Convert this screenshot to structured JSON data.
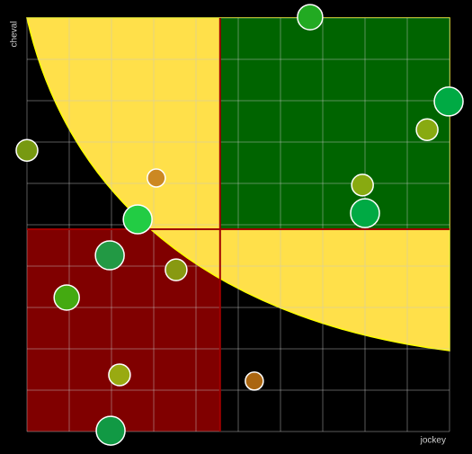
{
  "chart_data": {
    "type": "bubble",
    "x_label": "jockey",
    "y_label": "cheval",
    "xlim": [
      0,
      10
    ],
    "ylim": [
      0,
      10
    ],
    "xticks": [
      0,
      1,
      2,
      3,
      4,
      5,
      6,
      7,
      8,
      9,
      10
    ],
    "yticks": [
      0,
      1,
      2,
      3,
      4,
      5,
      6,
      7,
      8,
      9,
      10
    ],
    "grid": true,
    "thresholds": {
      "x": 4.57,
      "y": 4.89
    },
    "x": [
      6.7,
      9.98,
      9.47,
      0.0,
      3.06,
      7.94,
      8.0,
      2.62,
      1.96,
      3.53,
      0.94,
      2.19,
      5.38,
      1.98
    ],
    "y": [
      10.02,
      7.98,
      7.3,
      6.8,
      6.13,
      5.96,
      5.28,
      5.13,
      4.26,
      3.91,
      3.24,
      1.37,
      1.22,
      0.02
    ],
    "sizes": [
      14,
      16,
      12,
      12,
      10,
      12,
      16,
      16,
      16,
      12,
      14,
      12,
      10,
      16
    ],
    "colors": [
      "#22aa22",
      "#00aa44",
      "#88aa11",
      "#779911",
      "#cc8822",
      "#88aa11",
      "#00aa44",
      "#22cc44",
      "#229944",
      "#889911",
      "#44aa11",
      "#99aa11",
      "#aa6611",
      "#119944"
    ]
  }
}
